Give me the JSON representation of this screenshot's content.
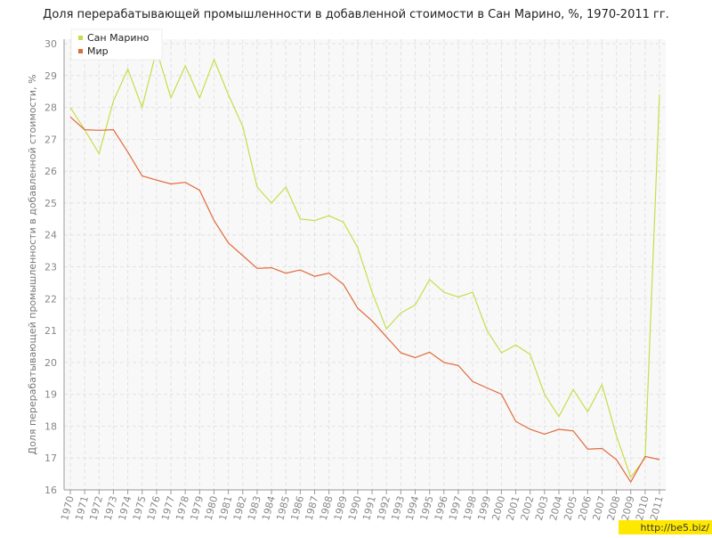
{
  "chart_data": {
    "type": "line",
    "title": "Доля перерабатывающей промышленности в добавленной стоимости в Сан Марино, %, 1970-2011 гг.",
    "y_label": "Доля перерабатывающей промышленности в добавленной стоимости, %",
    "watermark": "http://be5.biz/",
    "categories": [
      "1970",
      "1971",
      "1972",
      "1973",
      "1974",
      "1975",
      "1976",
      "1977",
      "1978",
      "1979",
      "1980",
      "1981",
      "1982",
      "1983",
      "1984",
      "1985",
      "1986",
      "1987",
      "1988",
      "1989",
      "1990",
      "1991",
      "1992",
      "1993",
      "1994",
      "1995",
      "1996",
      "1997",
      "1998",
      "1999",
      "2000",
      "2001",
      "2002",
      "2003",
      "2004",
      "2005",
      "2006",
      "2007",
      "2008",
      "2009",
      "2010",
      "2011"
    ],
    "series": [
      {
        "name": "Сан Марино",
        "color": "#c5de4a",
        "values": [
          28.0,
          27.3,
          26.55,
          28.2,
          29.2,
          28.0,
          29.8,
          28.3,
          29.3,
          28.3,
          29.5,
          28.4,
          27.4,
          25.5,
          25.0,
          25.5,
          24.5,
          24.45,
          24.6,
          24.4,
          23.6,
          22.2,
          21.05,
          21.55,
          21.8,
          22.6,
          22.2,
          22.05,
          22.2,
          21.0,
          20.3,
          20.55,
          20.25,
          19.0,
          18.3,
          19.15,
          18.45,
          19.3,
          17.7,
          16.4,
          17.0,
          28.4
        ]
      },
      {
        "name": "Мир",
        "color": "#e06a3a",
        "values": [
          27.7,
          27.3,
          27.28,
          27.3,
          26.6,
          25.85,
          25.72,
          25.6,
          25.65,
          25.4,
          24.45,
          23.75,
          23.35,
          22.95,
          22.97,
          22.8,
          22.9,
          22.7,
          22.8,
          22.45,
          21.7,
          21.3,
          20.8,
          20.3,
          20.15,
          20.32,
          20.0,
          19.9,
          19.4,
          19.2,
          19.0,
          18.15,
          17.9,
          17.75,
          17.9,
          17.85,
          17.28,
          17.3,
          16.95,
          16.25,
          17.05,
          16.95
        ]
      }
    ],
    "ylim": [
      16,
      30
    ],
    "yticks": [
      16,
      17,
      18,
      19,
      20,
      21,
      22,
      23,
      24,
      25,
      26,
      27,
      28,
      29,
      30
    ],
    "grid": true,
    "legend": "top-left"
  }
}
